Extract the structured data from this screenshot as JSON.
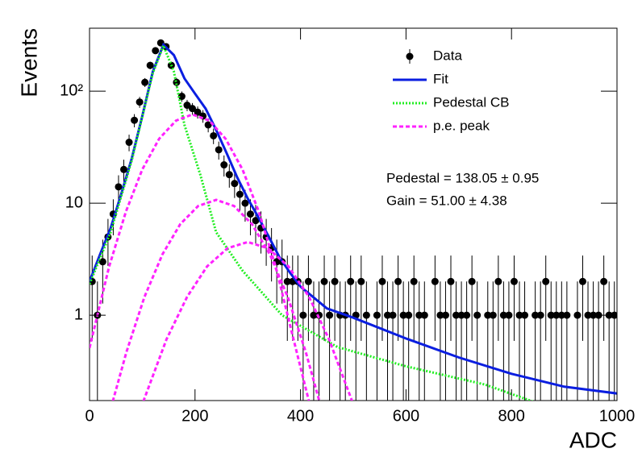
{
  "chart_data": {
    "type": "scatter",
    "xlabel": "ADC",
    "ylabel": "Events",
    "xlim": [
      0,
      1000
    ],
    "xticks": [
      0,
      200,
      400,
      600,
      800,
      1000
    ],
    "ylim": [
      0.173,
      365
    ],
    "yticks": [
      1,
      10,
      {
        "value": 100,
        "label": "10²"
      }
    ],
    "log_y": true,
    "legend": "upper right",
    "annotations": [
      "Pedestal = 138.05 ± 0.95",
      "Gain = 51.00 ± 4.38"
    ],
    "series": [
      {
        "name": "Data",
        "type": "errorbar",
        "color": "#000000",
        "x": [
          5,
          15,
          25,
          35,
          45,
          55,
          65,
          75,
          85,
          95,
          105,
          115,
          125,
          135,
          145,
          155,
          165,
          175,
          185,
          195,
          205,
          215,
          225,
          235,
          245,
          255,
          265,
          275,
          285,
          295,
          305,
          315,
          325,
          335,
          345,
          355,
          365,
          375,
          385,
          395,
          405,
          415,
          425,
          435,
          445,
          455,
          465,
          475,
          485,
          495,
          505,
          515,
          525,
          535,
          545,
          555,
          565,
          575,
          585,
          595,
          605,
          615,
          625,
          635,
          645,
          655,
          665,
          675,
          685,
          695,
          705,
          715,
          725,
          735,
          745,
          755,
          765,
          775,
          785,
          795,
          805,
          815,
          825,
          835,
          845,
          855,
          865,
          875,
          885,
          895,
          905,
          915,
          925,
          935,
          945,
          955,
          965,
          975,
          985,
          995
        ],
        "values": [
          2,
          1,
          3,
          5,
          8,
          14,
          20,
          35,
          55,
          80,
          120,
          170,
          230,
          270,
          250,
          170,
          120,
          90,
          75,
          70,
          65,
          60,
          50,
          40,
          30,
          22,
          18,
          15,
          12,
          10,
          8,
          7,
          6,
          5,
          4,
          3,
          3,
          2,
          2,
          2,
          1,
          2,
          1,
          1,
          2,
          1,
          2,
          1,
          1,
          2,
          1,
          2,
          1,
          null,
          1,
          2,
          1,
          1,
          2,
          1,
          1,
          2,
          1,
          1,
          null,
          2,
          1,
          1,
          2,
          1,
          1,
          1,
          2,
          1,
          null,
          1,
          1,
          2,
          1,
          1,
          2,
          1,
          1,
          null,
          1,
          1,
          2,
          1,
          1,
          1,
          1,
          null,
          1,
          2,
          1,
          1,
          1,
          2,
          1,
          1
        ],
        "errors": [
          1.41,
          1,
          1.73,
          2.24,
          2.83,
          3.74,
          4.47,
          5.92,
          7.42,
          8.94,
          10.95,
          13.04,
          15.17,
          16.43,
          15.81,
          13.04,
          10.95,
          9.49,
          8.66,
          8.37,
          8.06,
          7.75,
          7.07,
          6.32,
          5.48,
          4.69,
          4.24,
          3.87,
          3.46,
          3.16,
          2.83,
          2.65,
          2.45,
          2.24,
          2,
          1.73,
          1.73,
          1.41,
          1.41,
          1.41,
          1,
          1.41,
          1,
          1,
          1.41,
          1,
          1.41,
          1,
          1,
          1.41,
          1,
          1.41,
          1,
          null,
          1,
          1.41,
          1,
          1,
          1.41,
          1,
          1,
          1.41,
          1,
          1,
          null,
          1.41,
          1,
          1,
          1.41,
          1,
          1,
          1,
          1.41,
          1,
          null,
          1,
          1,
          1.41,
          1,
          1,
          1.41,
          1,
          1,
          null,
          1,
          1,
          1.41,
          1,
          1,
          1,
          1,
          null,
          1,
          1.41,
          1,
          1,
          1,
          1.41,
          1,
          1
        ]
      },
      {
        "name": "Fit",
        "type": "line",
        "color": "#0a1ee0",
        "style": "solid",
        "x": [
          0,
          20,
          40,
          60,
          80,
          100,
          120,
          140,
          160,
          180,
          200,
          220,
          240,
          260,
          280,
          300,
          320,
          340,
          360,
          380,
          400,
          450,
          500,
          600,
          700,
          800,
          900,
          1000
        ],
        "values": [
          2.0,
          3.5,
          6,
          12,
          25,
          60,
          150,
          260,
          210,
          130,
          95,
          70,
          45,
          28,
          17,
          11,
          7.5,
          5,
          3.3,
          2.4,
          1.8,
          1.15,
          0.95,
          0.62,
          0.42,
          0.3,
          0.23,
          0.2
        ]
      },
      {
        "name": "Pedestal CB",
        "type": "line",
        "color": "#22ee22",
        "style": "dotted",
        "x": [
          0,
          40,
          80,
          120,
          140,
          160,
          180,
          210,
          240,
          290,
          365,
          470,
          600,
          750,
          840
        ],
        "values": [
          1.9,
          5.5,
          24,
          145,
          255,
          150,
          50,
          18,
          5.5,
          2.5,
          1,
          0.52,
          0.35,
          0.24,
          0.17
        ]
      },
      {
        "name": "p.e. peak",
        "type": "line",
        "color": "#ff22ff",
        "style": "dashed",
        "curves": [
          {
            "x": [
              0,
              37,
              69,
              100,
              132,
              164,
              195,
              227,
              258,
              290,
              321,
              353,
              384,
              416
            ],
            "values": [
              0.51,
              2.7,
              8.4,
              20,
              37.6,
              54.7,
              62,
              54.7,
              37.6,
              20,
              8.4,
              2.7,
              0.69,
              0.17
            ]
          },
          {
            "x": [
              44,
              70,
              104,
              138,
              172,
              206,
              240,
              274,
              308,
              342,
              376,
              410,
              436
            ],
            "values": [
              0.17,
              0.47,
              1.45,
              3.48,
              6.5,
              9.44,
              10.7,
              9.44,
              6.5,
              3.48,
              1.45,
              0.47,
              0.17
            ]
          },
          {
            "x": [
              102,
              146,
              185,
              223,
              262,
              300,
              338,
              377,
              416,
              454,
              498
            ],
            "values": [
              0.17,
              0.61,
              1.46,
              2.73,
              3.97,
              4.5,
              3.97,
              2.73,
              1.46,
              0.61,
              0.17
            ]
          }
        ]
      }
    ]
  }
}
